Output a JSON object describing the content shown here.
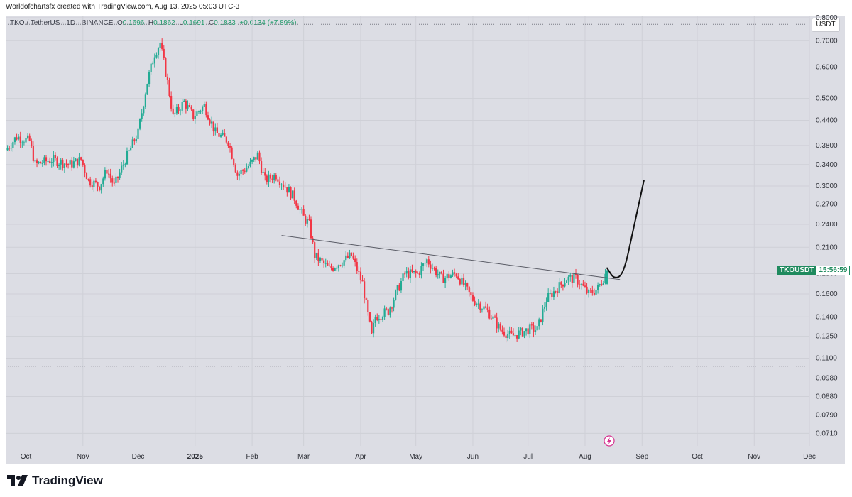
{
  "header": {
    "credit": "Worldofchartsfx created with TradingView.com, Aug 13, 2025 05:03 UTC-3"
  },
  "legend": {
    "symbol": "TKO / TetherUS · 1D · BINANCE",
    "o_label": "O",
    "o": "0.1696",
    "h_label": "H",
    "h": "0.1862",
    "l_label": "L",
    "l": "0.1691",
    "c_label": "C",
    "c": "0.1833",
    "change": "+0.0134 (+7.89%)"
  },
  "unit_badge": "USDT",
  "price_tag": {
    "symbol": "TKOUSDT",
    "countdown": "15:56:59"
  },
  "brand": {
    "name": "TradingView"
  },
  "colors": {
    "up": "#22ab94",
    "down": "#f23645",
    "background": "#dcdde4",
    "tag": "#1f8a5e"
  },
  "chart_data": {
    "type": "candlestick",
    "scale": "log",
    "ylim": [
      0.066,
      0.81
    ],
    "y_ticks": [
      "0.8000",
      "0.7000",
      "0.6000",
      "0.5000",
      "0.4400",
      "0.3800",
      "0.3400",
      "0.3000",
      "0.2700",
      "0.2400",
      "0.2100",
      "0.1800",
      "0.1600",
      "0.1400",
      "0.1250",
      "0.1100",
      "0.0980",
      "0.0880",
      "0.0790",
      "0.0710"
    ],
    "x_ticks": [
      {
        "label": "Oct",
        "date": "2024-10-01"
      },
      {
        "label": "Nov",
        "date": "2024-11-01"
      },
      {
        "label": "Dec",
        "date": "2024-12-01"
      },
      {
        "label": "2025",
        "date": "2025-01-01",
        "bold": true
      },
      {
        "label": "Feb",
        "date": "2025-02-01"
      },
      {
        "label": "Mar",
        "date": "2025-03-01"
      },
      {
        "label": "Apr",
        "date": "2025-04-01"
      },
      {
        "label": "May",
        "date": "2025-05-01"
      },
      {
        "label": "Jun",
        "date": "2025-06-01"
      },
      {
        "label": "Jul",
        "date": "2025-07-01"
      },
      {
        "label": "Aug",
        "date": "2025-08-01"
      },
      {
        "label": "Sep",
        "date": "2025-09-01"
      },
      {
        "label": "Oct",
        "date": "2025-10-01"
      },
      {
        "label": "Nov",
        "date": "2025-11-01"
      },
      {
        "label": "Dec",
        "date": "2025-12-01"
      }
    ],
    "x_start": "2024-09-20",
    "x_end": "2025-12-01",
    "close_path": [
      [
        "2024-09-20",
        0.37
      ],
      [
        "2024-09-26",
        0.4
      ],
      [
        "2024-10-03",
        0.39
      ],
      [
        "2024-10-06",
        0.34
      ],
      [
        "2024-10-15",
        0.35
      ],
      [
        "2024-10-25",
        0.34
      ],
      [
        "2024-10-31",
        0.35
      ],
      [
        "2024-11-04",
        0.31
      ],
      [
        "2024-11-10",
        0.3
      ],
      [
        "2024-11-14",
        0.33
      ],
      [
        "2024-11-18",
        0.3
      ],
      [
        "2024-11-24",
        0.35
      ],
      [
        "2024-12-01",
        0.41
      ],
      [
        "2024-12-06",
        0.55
      ],
      [
        "2024-12-10",
        0.65
      ],
      [
        "2024-12-13",
        0.69
      ],
      [
        "2024-12-17",
        0.55
      ],
      [
        "2024-12-20",
        0.45
      ],
      [
        "2024-12-26",
        0.49
      ],
      [
        "2024-12-31",
        0.45
      ],
      [
        "2025-01-06",
        0.48
      ],
      [
        "2025-01-12",
        0.41
      ],
      [
        "2025-01-19",
        0.39
      ],
      [
        "2025-01-24",
        0.32
      ],
      [
        "2025-01-31",
        0.34
      ],
      [
        "2025-02-04",
        0.36
      ],
      [
        "2025-02-08",
        0.31
      ],
      [
        "2025-02-14",
        0.32
      ],
      [
        "2025-02-24",
        0.28
      ],
      [
        "2025-03-01",
        0.25
      ],
      [
        "2025-03-04",
        0.24
      ],
      [
        "2025-03-07",
        0.2
      ],
      [
        "2025-03-15",
        0.185
      ],
      [
        "2025-03-27",
        0.2
      ],
      [
        "2025-04-02",
        0.17
      ],
      [
        "2025-04-07",
        0.125
      ],
      [
        "2025-04-09",
        0.14
      ],
      [
        "2025-04-16",
        0.145
      ],
      [
        "2025-04-25",
        0.18
      ],
      [
        "2025-05-02",
        0.18
      ],
      [
        "2025-05-07",
        0.195
      ],
      [
        "2025-05-15",
        0.175
      ],
      [
        "2025-05-23",
        0.18
      ],
      [
        "2025-06-01",
        0.155
      ],
      [
        "2025-06-09",
        0.145
      ],
      [
        "2025-06-16",
        0.13
      ],
      [
        "2025-06-22",
        0.125
      ],
      [
        "2025-07-01",
        0.13
      ],
      [
        "2025-07-06",
        0.13
      ],
      [
        "2025-07-11",
        0.155
      ],
      [
        "2025-07-22",
        0.175
      ],
      [
        "2025-07-27",
        0.175
      ],
      [
        "2025-08-03",
        0.16
      ],
      [
        "2025-08-08",
        0.165
      ],
      [
        "2025-08-13",
        0.1833
      ]
    ],
    "drawings": {
      "trendline": [
        [
          "2025-02-17",
          0.225
        ],
        [
          "2025-08-20",
          0.174
        ]
      ],
      "projection": [
        [
          "2025-08-13",
          0.186
        ],
        [
          "2025-08-17",
          0.174
        ],
        [
          "2025-08-22",
          0.18
        ],
        [
          "2025-08-27",
          0.23
        ],
        [
          "2025-09-02",
          0.31
        ]
      ],
      "hlines": [
        0.77,
        0.105
      ]
    }
  }
}
